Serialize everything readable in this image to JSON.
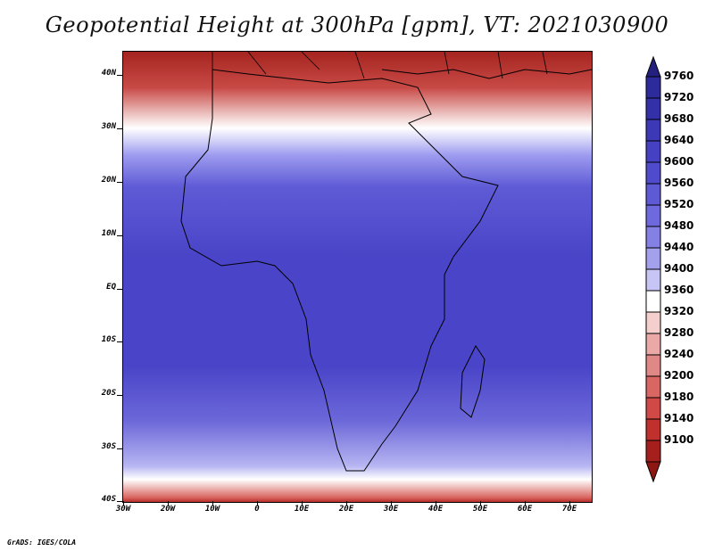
{
  "title": "Geopotential Height at 300hPa [gpm], VT: 2021030900",
  "footer": "GrADS: IGES/COLA",
  "lat_labels": [
    "40N",
    "30N",
    "20N",
    "10N",
    "EQ",
    "10S",
    "20S",
    "30S",
    "40S"
  ],
  "lon_labels": [
    "30W",
    "20W",
    "10W",
    "0",
    "10E",
    "20E",
    "30E",
    "40E",
    "50E",
    "60E",
    "70E"
  ],
  "colorbar": {
    "levels": [
      "9760",
      "9720",
      "9680",
      "9640",
      "9600",
      "9560",
      "9520",
      "9480",
      "9440",
      "9400",
      "9360",
      "9320",
      "9280",
      "9240",
      "9200",
      "9180",
      "9140",
      "9100"
    ],
    "colors": [
      "#2d2a9c",
      "#3431a8",
      "#3c38b6",
      "#4641c3",
      "#504bcc",
      "#5e59d4",
      "#6e69dc",
      "#8581e4",
      "#a3a0ec",
      "#c7c5f5",
      "#ffffff",
      "#f4cfce",
      "#eaa9a7",
      "#e08885",
      "#d86663",
      "#d14946",
      "#c0302c",
      "#a5201c"
    ],
    "top_arrow_color": "#23207f",
    "bottom_arrow_color": "#8f1713"
  },
  "chart_data": {
    "type": "heatmap",
    "title": "Geopotential Height at 300hPa [gpm], VT: 2021030900",
    "variable": "Geopotential Height at 300hPa",
    "units": "gpm",
    "valid_time": "2021030900",
    "lon_range": [
      -30,
      75
    ],
    "lat_range": [
      -40,
      45
    ],
    "contour_levels": [
      9100,
      9140,
      9180,
      9200,
      9240,
      9280,
      9320,
      9360,
      9400,
      9440,
      9480,
      9520,
      9560,
      9600,
      9640,
      9680,
      9720,
      9760
    ],
    "summary": {
      "north_mediterranean_region": "9100-9300 (low heights, red)",
      "tropics_equatorial_africa": "9640-9720 (high heights, blue)",
      "south_near_40S": "9100-9300 (low heights, red)"
    }
  }
}
